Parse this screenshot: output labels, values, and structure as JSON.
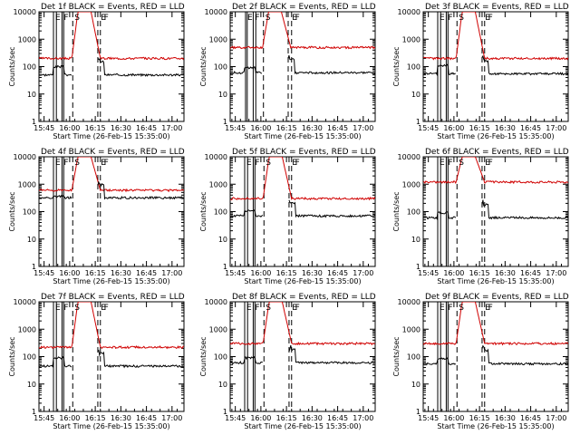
{
  "figure": {
    "y_axis_label": "Counts/sec",
    "x_axis_label": "Start Time (26-Feb-15 15:35:00)",
    "legend_suffix": "BLACK = Events, RED = LLD",
    "colors": {
      "events": "#000000",
      "lld": "#d00000",
      "axes": "#000000",
      "background": "#ffffff"
    },
    "flag_letters": [
      "E",
      "F",
      "S"
    ]
  },
  "chart_data": [
    {
      "type": "line",
      "title": "Det 1f BLACK = Events, RED = LLD",
      "scale": "log",
      "ylim": [
        1,
        10000
      ],
      "x_ticks": [
        "15:45",
        "16:00",
        "16:15",
        "16:30",
        "16:45",
        "17:00"
      ],
      "y_ticks": [
        "1",
        "10",
        "100",
        "1000",
        "10000"
      ],
      "xlabel": "Start Time (26-Feb-15 15:35:00)",
      "ylabel": "Counts/sec",
      "lld_base": 200,
      "events_base": 50,
      "events_bump": 2.0,
      "lld_peak_in": 10000,
      "solid_lines": [
        15.5,
        17.2,
        20.5,
        21.5
      ],
      "dashed_lines": [
        26.8,
        41.5,
        43.0
      ],
      "flags": [
        "E",
        "F",
        "S",
        "E",
        "F"
      ]
    },
    {
      "type": "line",
      "title": "Det 2f BLACK = Events, RED = LLD",
      "scale": "log",
      "ylim": [
        1,
        10000
      ],
      "x_ticks": [
        "15:45",
        "16:00",
        "16:15",
        "16:30",
        "16:45",
        "17:00"
      ],
      "y_ticks": [
        "1",
        "10",
        "100",
        "1000",
        "10000"
      ],
      "xlabel": "Start Time (26-Feb-15 15:35:00)",
      "ylabel": "Counts/sec",
      "lld_base": 500,
      "events_base": 60,
      "events_bump": 1.5,
      "lld_peak_in": 10000,
      "solid_lines": [
        16.0,
        17.0,
        20.5,
        22.0
      ],
      "dashed_lines": [
        26.5,
        41.0,
        43.0
      ],
      "flags": [
        "E",
        "F",
        "S",
        "E",
        "F"
      ]
    },
    {
      "type": "line",
      "title": "Det 3f BLACK = Events, RED = LLD",
      "scale": "log",
      "ylim": [
        1,
        10000
      ],
      "x_ticks": [
        "15:45",
        "16:00",
        "16:15",
        "16:30",
        "16:45",
        "17:00"
      ],
      "y_ticks": [
        "1",
        "10",
        "100",
        "1000",
        "10000"
      ],
      "xlabel": "Start Time (26-Feb-15 15:35:00)",
      "ylabel": "Counts/sec",
      "lld_base": 200,
      "events_base": 55,
      "events_bump": 2.0,
      "lld_peak_in": 10000,
      "solid_lines": [
        15.5,
        17.2,
        20.5,
        21.5
      ],
      "dashed_lines": [
        26.8,
        41.5,
        43.0
      ],
      "flags": [
        "E",
        "F",
        "S",
        "E",
        "F"
      ]
    },
    {
      "type": "line",
      "title": "Det 4f BLACK = Events, RED = LLD",
      "scale": "log",
      "ylim": [
        1,
        10000
      ],
      "x_ticks": [
        "15:45",
        "16:00",
        "16:15",
        "16:30",
        "16:45",
        "17:00"
      ],
      "y_ticks": [
        "1",
        "10",
        "100",
        "1000",
        "10000"
      ],
      "xlabel": "Start Time (26-Feb-15 15:35:00)",
      "ylabel": "Counts/sec",
      "lld_base": 600,
      "events_base": 320,
      "events_bump": 1.1,
      "lld_peak_in": 10000,
      "solid_lines": [
        15.5,
        17.2,
        20.5,
        21.5
      ],
      "dashed_lines": [
        26.8,
        41.5,
        43.0
      ],
      "flags": [
        "E",
        "F",
        "S",
        "E",
        "F"
      ]
    },
    {
      "type": "line",
      "title": "Det 5f BLACK = Events, RED = LLD",
      "scale": "log",
      "ylim": [
        1,
        10000
      ],
      "x_ticks": [
        "15:45",
        "16:00",
        "16:15",
        "16:30",
        "16:45",
        "17:00"
      ],
      "y_ticks": [
        "1",
        "10",
        "100",
        "1000",
        "10000"
      ],
      "xlabel": "Start Time (26-Feb-15 15:35:00)",
      "ylabel": "Counts/sec",
      "lld_base": 300,
      "events_base": 70,
      "events_bump": 1.5,
      "lld_peak_in": 10000,
      "solid_lines": [
        15.5,
        17.2,
        20.5,
        21.5
      ],
      "dashed_lines": [
        26.8,
        41.5,
        43.0
      ],
      "flags": [
        "E",
        "F",
        "S",
        "E",
        "F"
      ]
    },
    {
      "type": "line",
      "title": "Det 6f BLACK = Events, RED = LLD",
      "scale": "log",
      "ylim": [
        1,
        10000
      ],
      "x_ticks": [
        "15:45",
        "16:00",
        "16:15",
        "16:30",
        "16:45",
        "17:00"
      ],
      "y_ticks": [
        "1",
        "10",
        "100",
        "1000",
        "10000"
      ],
      "xlabel": "Start Time (26-Feb-15 15:35:00)",
      "ylabel": "Counts/sec",
      "lld_base": 1200,
      "events_base": 60,
      "events_bump": 1.5,
      "lld_peak_in": 10000,
      "solid_lines": [
        15.5,
        17.2,
        20.5,
        21.5
      ],
      "dashed_lines": [
        26.8,
        41.5,
        43.0
      ],
      "flags": [
        "E",
        "F",
        "S",
        "E",
        "F"
      ]
    },
    {
      "type": "line",
      "title": "Det 7f BLACK = Events, RED = LLD",
      "scale": "log",
      "ylim": [
        1,
        10000
      ],
      "x_ticks": [
        "15:45",
        "16:00",
        "16:15",
        "16:30",
        "16:45",
        "17:00"
      ],
      "y_ticks": [
        "1",
        "10",
        "100",
        "1000",
        "10000"
      ],
      "xlabel": "Start Time (26-Feb-15 15:35:00)",
      "ylabel": "Counts/sec",
      "lld_base": 220,
      "events_base": 45,
      "events_bump": 2.0,
      "lld_peak_in": 10000,
      "solid_lines": [
        15.5,
        17.2,
        20.5,
        21.5
      ],
      "dashed_lines": [
        26.8,
        41.5,
        43.0
      ],
      "flags": [
        "E",
        "F",
        "S",
        "E",
        "F"
      ]
    },
    {
      "type": "line",
      "title": "Det 8f BLACK = Events, RED = LLD",
      "scale": "log",
      "ylim": [
        1,
        10000
      ],
      "x_ticks": [
        "15:45",
        "16:00",
        "16:15",
        "16:30",
        "16:45",
        "17:00"
      ],
      "y_ticks": [
        "1",
        "10",
        "100",
        "1000",
        "10000"
      ],
      "xlabel": "Start Time (26-Feb-15 15:35:00)",
      "ylabel": "Counts/sec",
      "lld_base": 300,
      "events_base": 60,
      "events_bump": 1.5,
      "lld_peak_in": 10000,
      "solid_lines": [
        15.5,
        17.2,
        20.5,
        21.5
      ],
      "dashed_lines": [
        26.8,
        41.5,
        43.0
      ],
      "flags": [
        "E",
        "F",
        "S",
        "E",
        "F"
      ]
    },
    {
      "type": "line",
      "title": "Det 9f BLACK = Events, RED = LLD",
      "scale": "log",
      "ylim": [
        1,
        10000
      ],
      "x_ticks": [
        "15:45",
        "16:00",
        "16:15",
        "16:30",
        "16:45",
        "17:00"
      ],
      "y_ticks": [
        "1",
        "10",
        "100",
        "1000",
        "10000"
      ],
      "xlabel": "Start Time (26-Feb-15 15:35:00)",
      "ylabel": "Counts/sec",
      "lld_base": 300,
      "events_base": 55,
      "events_bump": 1.5,
      "lld_peak_in": 10000,
      "solid_lines": [
        15.5,
        17.2,
        20.5,
        21.5
      ],
      "dashed_lines": [
        26.8,
        41.5,
        43.0
      ],
      "flags": [
        "E",
        "F",
        "S",
        "E",
        "F"
      ]
    }
  ]
}
